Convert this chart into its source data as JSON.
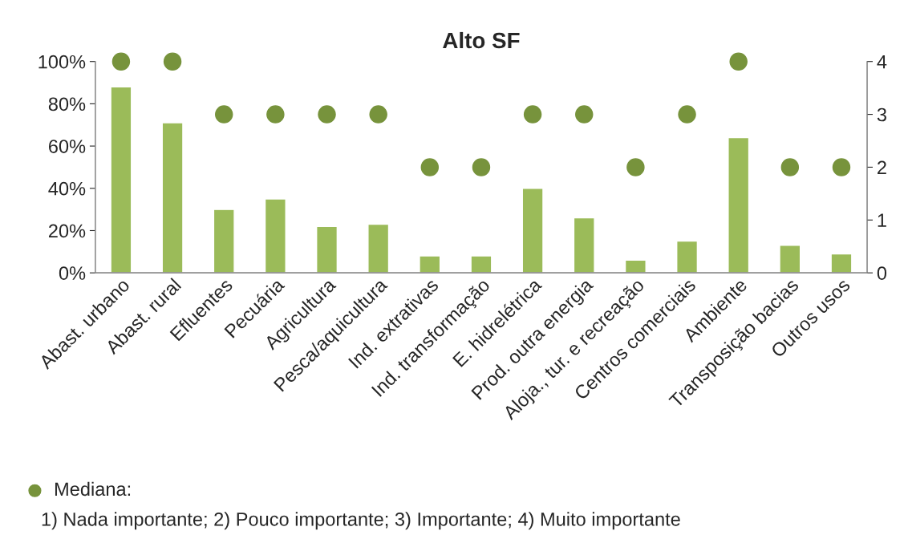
{
  "chart_data": {
    "type": "bar",
    "title": "Alto SF",
    "categories": [
      "Abast. urbano",
      "Abast. rural",
      "Efluentes",
      "Pecuária",
      "Agricultura",
      "Pesca/aquicultura",
      "Ind. extrativas",
      "Ind. transformação",
      "E. hidrelétrica",
      "Prod. outra energia",
      "Aloja., tur. e recreação",
      "Centros comerciais",
      "Ambiente",
      "Transposição bacias",
      "Outros usos"
    ],
    "series": [
      {
        "color": "#9bbb59",
        "values": [
          88,
          71,
          30,
          35,
          22,
          23,
          8,
          8,
          40,
          26,
          6,
          15,
          64,
          13,
          9
        ]
      },
      {
        "type": "scatter",
        "name": "Mediana:",
        "axis": "y2",
        "color": "#77933c",
        "values": [
          4,
          4,
          3,
          3,
          3,
          3,
          2,
          2,
          3,
          3,
          2,
          3,
          4,
          2,
          2
        ]
      }
    ],
    "ylim": [
      0,
      100
    ],
    "yticks": [
      {
        "value": 0,
        "label": "0%"
      },
      {
        "value": 20,
        "label": "20%"
      },
      {
        "value": 40,
        "label": "40%"
      },
      {
        "value": 60,
        "label": "60%"
      },
      {
        "value": 80,
        "label": "80%"
      },
      {
        "value": 100,
        "label": "100%"
      }
    ],
    "y2lim": [
      0,
      4
    ],
    "y2ticks": [
      0,
      1,
      2,
      3,
      4
    ],
    "marker": "circle",
    "legend": "bottom left",
    "grid": false,
    "annotations": [
      "1) Nada importante; 2) Pouco importante; 3) Importante; 4) Muito importante"
    ]
  }
}
